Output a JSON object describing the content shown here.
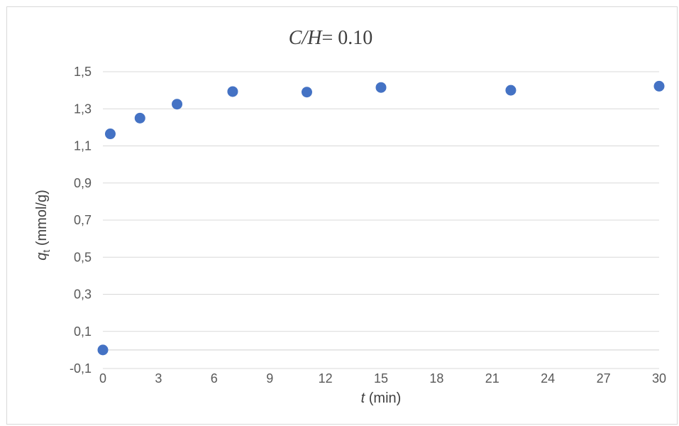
{
  "chart_data": {
    "type": "scatter",
    "title": {
      "italic": "C/H",
      "rest": "= 0.10"
    },
    "xlabel": {
      "italic": "t",
      "rest": " (min)"
    },
    "ylabel": {
      "italic": "q",
      "subscript": "t",
      "rest": " (mmol/g)"
    },
    "xlim": [
      0,
      30
    ],
    "ylim": [
      -0.1,
      1.5
    ],
    "xticks": [
      0,
      3,
      6,
      9,
      12,
      15,
      18,
      21,
      24,
      27,
      30
    ],
    "yticks": [
      -0.1,
      0.1,
      0.3,
      0.5,
      0.7,
      0.9,
      1.1,
      1.3,
      1.5
    ],
    "ytick_labels": [
      "-0,1",
      "0,1",
      "0,3",
      "0,5",
      "0,7",
      "0,9",
      "1,1",
      "1,3",
      "1,5"
    ],
    "grid": "horizontal",
    "legend": "none",
    "colors": {
      "marker": "#4472c4",
      "gridline": "#d9d9d9",
      "text": "#595959"
    },
    "series": [
      {
        "x": [
          0,
          0.4,
          2,
          4,
          7,
          11,
          15,
          22,
          30
        ],
        "y": [
          0.0,
          1.165,
          1.25,
          1.325,
          1.393,
          1.39,
          1.415,
          1.4,
          1.422
        ]
      }
    ]
  }
}
